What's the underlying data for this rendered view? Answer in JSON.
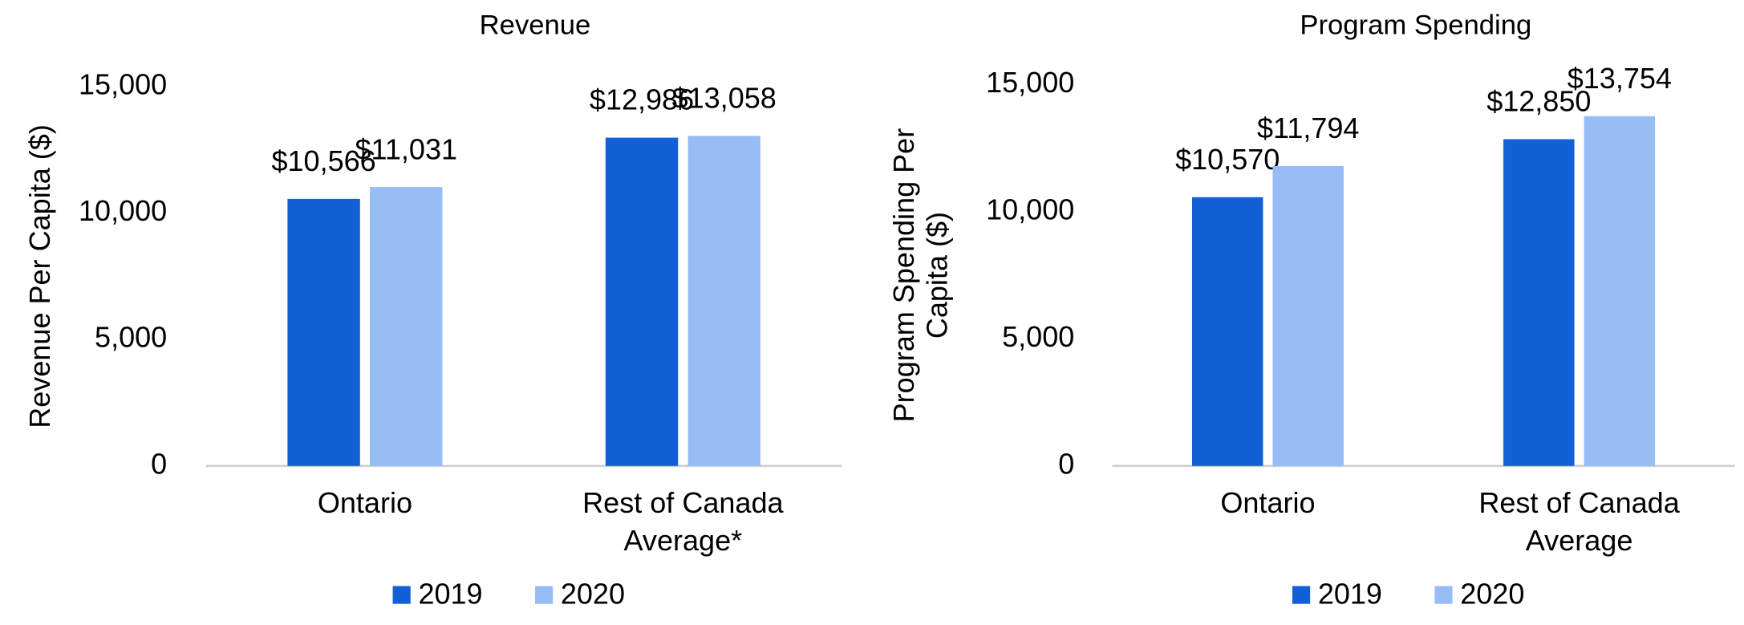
{
  "chart_data": [
    {
      "type": "bar",
      "title": "Revenue",
      "y_label": "Revenue Per Capita ($)",
      "categories": [
        "Ontario",
        "Rest of Canada Average*"
      ],
      "series": [
        {
          "name": "2019",
          "color": "#135fd6",
          "values": [
            10566,
            12986
          ],
          "value_labels": [
            "$10,566",
            "$12,986"
          ]
        },
        {
          "name": "2020",
          "color": "#97bcf6",
          "values": [
            11031,
            13058
          ],
          "value_labels": [
            "$11,031",
            "$13,058"
          ]
        }
      ],
      "ylim": [
        0,
        15000
      ],
      "yticks": [
        0,
        {
          "value": 5000,
          "label": "5,000"
        },
        {
          "value": 10000,
          "label": "10,000"
        },
        {
          "value": 15000,
          "label": "15,000"
        }
      ]
    },
    {
      "type": "bar",
      "title": "Program Spending",
      "y_label": "Program Spending Per Capita ($)",
      "categories": [
        "Ontario",
        "Rest of Canada Average"
      ],
      "series": [
        {
          "name": "2019",
          "color": "#135fd6",
          "values": [
            10570,
            12850
          ],
          "value_labels": [
            "$10,570",
            "$12,850"
          ]
        },
        {
          "name": "2020",
          "color": "#97bcf6",
          "values": [
            11794,
            13754
          ],
          "value_labels": [
            "$11,794",
            "$13,754"
          ]
        }
      ],
      "ylim": [
        0,
        15000
      ],
      "yticks": [
        0,
        {
          "value": 5000,
          "label": "5,000"
        },
        {
          "value": 10000,
          "label": "10,000"
        },
        {
          "value": 15000,
          "label": "15,000"
        }
      ]
    }
  ]
}
